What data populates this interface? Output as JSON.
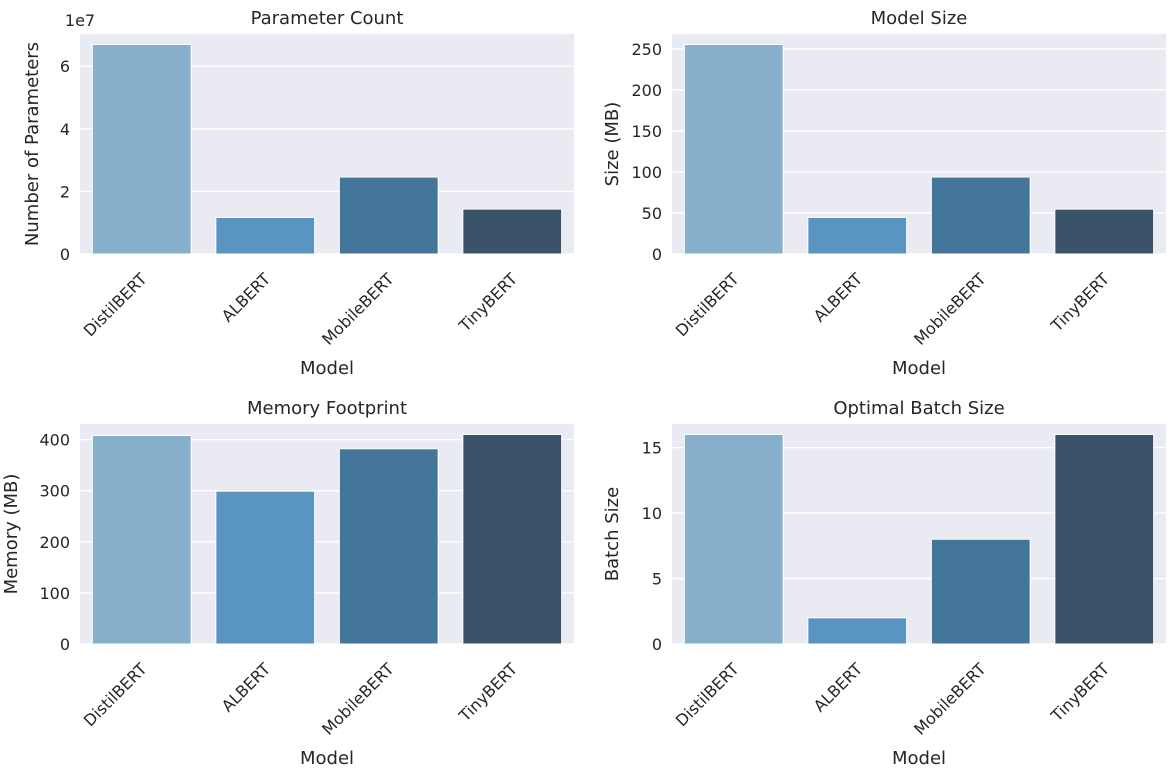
{
  "figure": {
    "background": "#ffffff",
    "plot_background": "#eaeaf2",
    "grid_color": "#ffffff"
  },
  "chart_data": [
    {
      "type": "bar",
      "title": "Parameter Count",
      "xlabel": "Model",
      "ylabel": "Number of Parameters",
      "offset_label": "1e7",
      "categories": [
        "DistilBERT",
        "ALBERT",
        "MobileBERT",
        "TinyBERT"
      ],
      "values": [
        66955010,
        11685122,
        24582914,
        14350874
      ],
      "ylim": [
        0,
        70300000.0
      ],
      "yticks": [
        0,
        20000000,
        40000000,
        60000000
      ],
      "ytick_labels": [
        "0",
        "2",
        "4",
        "6"
      ],
      "colors": [
        "#86afcc",
        "#5a94c0",
        "#44759a",
        "#3b5369"
      ],
      "grid": true
    },
    {
      "type": "bar",
      "title": "Model Size",
      "xlabel": "Model",
      "ylabel": "Size (MB)",
      "categories": [
        "DistilBERT",
        "ALBERT",
        "MobileBERT",
        "TinyBERT"
      ],
      "values": [
        255.4,
        44.6,
        93.8,
        54.7
      ],
      "ylim": [
        0,
        268.2
      ],
      "yticks": [
        0,
        50,
        100,
        150,
        200,
        250
      ],
      "ytick_labels": [
        "0",
        "50",
        "100",
        "150",
        "200",
        "250"
      ],
      "colors": [
        "#86afcc",
        "#5a94c0",
        "#44759a",
        "#3b5369"
      ],
      "grid": true
    },
    {
      "type": "bar",
      "title": "Memory Footprint",
      "xlabel": "Model",
      "ylabel": "Memory (MB)",
      "categories": [
        "DistilBERT",
        "ALBERT",
        "MobileBERT",
        "TinyBERT"
      ],
      "values": [
        408,
        299,
        382,
        410
      ],
      "ylim": [
        0,
        430.5
      ],
      "yticks": [
        0,
        100,
        200,
        300,
        400
      ],
      "ytick_labels": [
        "0",
        "100",
        "200",
        "300",
        "400"
      ],
      "colors": [
        "#86afcc",
        "#5a94c0",
        "#44759a",
        "#3b5369"
      ],
      "grid": true
    },
    {
      "type": "bar",
      "title": "Optimal Batch Size",
      "xlabel": "Model",
      "ylabel": "Batch Size",
      "categories": [
        "DistilBERT",
        "ALBERT",
        "MobileBERT",
        "TinyBERT"
      ],
      "values": [
        16,
        2,
        8,
        16
      ],
      "ylim": [
        0,
        16.8
      ],
      "yticks": [
        0,
        5,
        10,
        15
      ],
      "ytick_labels": [
        "0",
        "5",
        "10",
        "15"
      ],
      "colors": [
        "#86afcc",
        "#5a94c0",
        "#44759a",
        "#3b5369"
      ],
      "grid": true
    }
  ]
}
